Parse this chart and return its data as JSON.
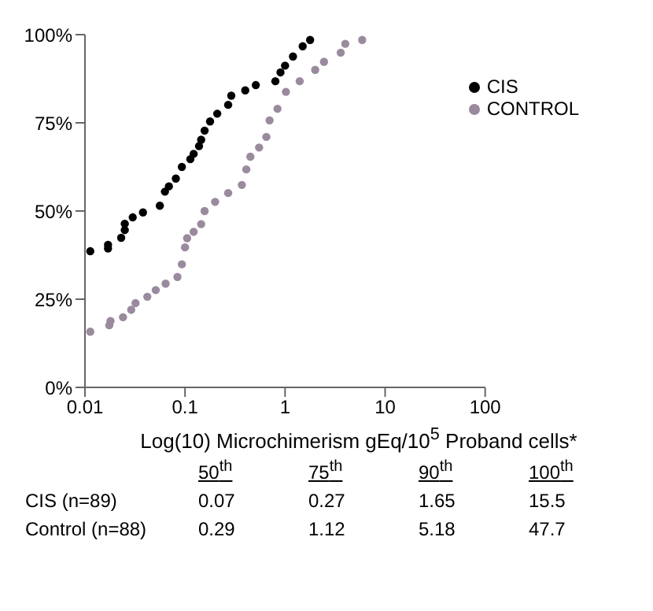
{
  "chart_data": {
    "type": "scatter",
    "xlabel": "Log(10) Microchimerism gEq/10$^{5}$ Proband cells*",
    "log": "x",
    "xlim": [
      0.01,
      100
    ],
    "xticks": [
      0.01,
      0.1,
      1,
      10,
      100
    ],
    "ylim": [
      0,
      100
    ],
    "yticks": [
      {
        "value": 0,
        "label": "0%"
      },
      {
        "value": 25,
        "label": "25%"
      },
      {
        "value": 50,
        "label": "50%"
      },
      {
        "value": 75,
        "label": "75%"
      },
      {
        "value": 100,
        "label": "100%"
      }
    ],
    "grid": false,
    "legend": "right",
    "marker": "circle",
    "series": [
      {
        "name": "CIS",
        "color": "#000000",
        "x": [
          0.0113,
          0.017,
          0.017,
          0.023,
          0.025,
          0.025,
          0.03,
          0.038,
          0.056,
          0.063,
          0.069,
          0.081,
          0.093,
          0.113,
          0.122,
          0.138,
          0.145,
          0.157,
          0.178,
          0.21,
          0.27,
          0.29,
          0.4,
          0.51,
          0.8,
          0.9,
          1.0,
          1.2,
          1.5,
          1.78
        ],
        "values": [
          38.6,
          39.4,
          40.4,
          42.4,
          44.6,
          46.4,
          48.2,
          49.6,
          51.5,
          55.5,
          57,
          59.2,
          62.5,
          64.7,
          66.2,
          68.4,
          70.2,
          72.8,
          75.4,
          77.6,
          80.1,
          82.7,
          84.2,
          85.7,
          86.8,
          89.3,
          91.2,
          93.8,
          96.7,
          98.5
        ]
      },
      {
        "name": "CONTROL",
        "color": "#9a8a9e",
        "x": [
          0.0113,
          0.0175,
          0.018,
          0.024,
          0.029,
          0.032,
          0.042,
          0.051,
          0.064,
          0.084,
          0.093,
          0.1,
          0.105,
          0.122,
          0.145,
          0.157,
          0.2,
          0.27,
          0.37,
          0.41,
          0.45,
          0.55,
          0.65,
          0.7,
          0.84,
          1.02,
          1.4,
          2.0,
          2.45,
          3.6,
          4.0,
          5.9
        ],
        "values": [
          15.8,
          17.6,
          18.8,
          19.9,
          22,
          23.9,
          25.7,
          27.6,
          29.4,
          31.3,
          34.9,
          39.7,
          42.3,
          44.1,
          46.3,
          50,
          52.6,
          55.1,
          57.4,
          61.8,
          65.4,
          68,
          71,
          75.7,
          79,
          83.8,
          86.8,
          90,
          92.3,
          94.9,
          97.4,
          98.5
        ]
      }
    ],
    "annotations": [
      "50$^{th}$",
      "75$^{th}$",
      "90$^{th}$",
      "100$^{th}$",
      "CIS (n=89)",
      "0.07",
      "0.27",
      "1.65",
      "15.5",
      "Control (n=88)",
      "0.29",
      "1.12",
      "5.18",
      "47.7"
    ]
  }
}
